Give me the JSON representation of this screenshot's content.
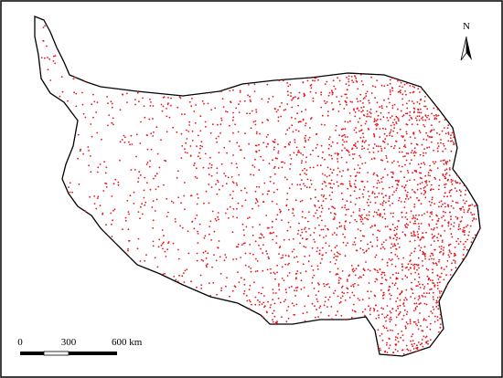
{
  "north_label": "N",
  "scale_bar": {
    "labels": [
      "0",
      "300",
      "600 km"
    ]
  }
}
